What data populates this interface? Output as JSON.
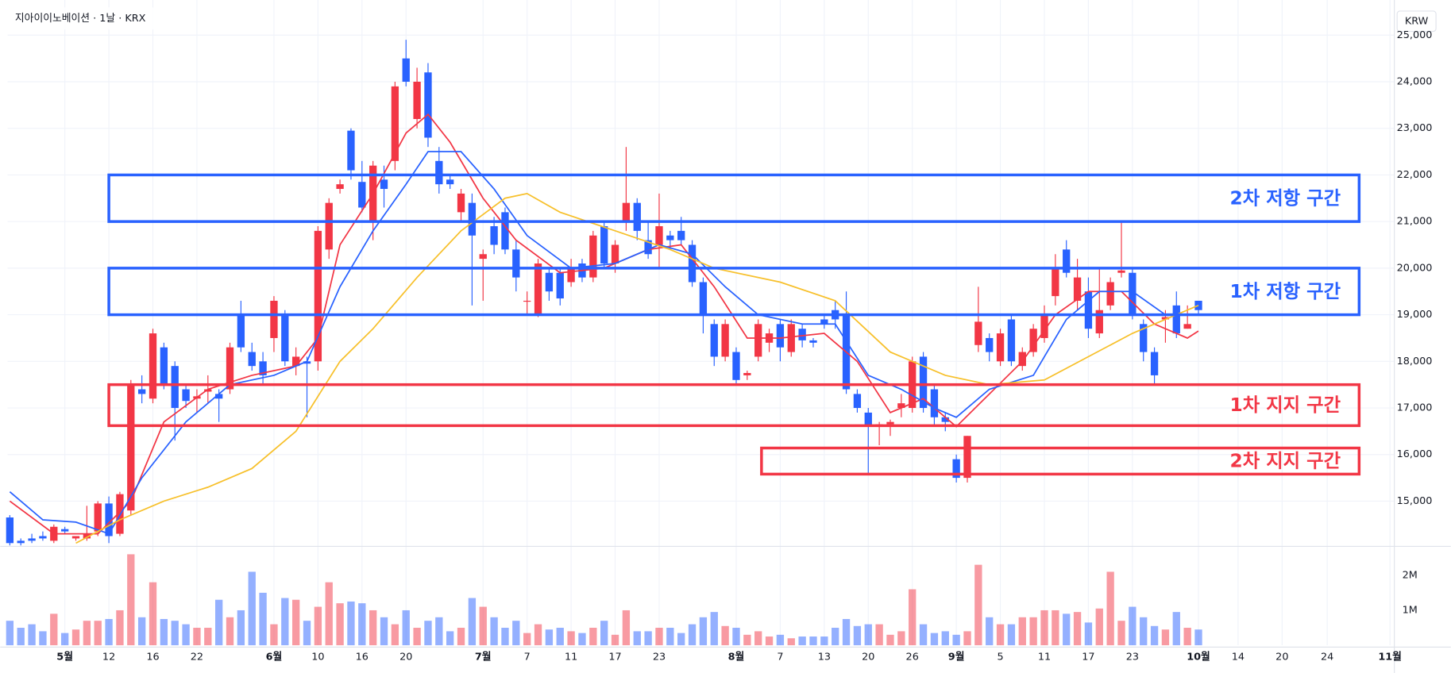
{
  "chart_data": {
    "type": "candlestick",
    "title": "지아이이노베이션 · 1날 · KRX",
    "currency": "KRW",
    "up_color": "#f23645",
    "down_color": "#2962ff",
    "open": [
      14650,
      14150,
      14200,
      14250,
      14150,
      14400,
      14200,
      14200,
      14350,
      14950,
      14300,
      14800,
      17400,
      17200,
      18300,
      17900,
      17400,
      17200,
      17350,
      17300,
      17400,
      19000,
      18200,
      18000,
      18500,
      19000,
      17900,
      18000,
      18000,
      20400,
      21700,
      22950,
      21850,
      21000,
      21900,
      22300,
      24500,
      23200,
      24200,
      22300,
      21900,
      21200,
      21400,
      20200,
      20900,
      21200,
      20400,
      19300,
      19000,
      19900,
      19900,
      19700,
      20100,
      19800,
      20900,
      20100,
      21000,
      21400,
      20600,
      20500,
      20700,
      20800,
      20500,
      19700,
      18800,
      18100,
      18200,
      17700,
      18100,
      18400,
      18800,
      18200,
      18700,
      18450,
      18900,
      19100,
      19000,
      17300,
      16900,
      16600,
      16650,
      17000,
      17000,
      18100,
      17400,
      16800,
      15900,
      15500,
      18350,
      18500,
      18000,
      18900,
      17900,
      18200,
      18500,
      19400,
      20400,
      19300,
      19500,
      18600,
      19200,
      19900,
      19900,
      18800,
      18200,
      18900,
      19200,
      18700,
      19300
    ],
    "high": [
      14700,
      14200,
      14300,
      14350,
      14500,
      14450,
      14250,
      14900,
      15000,
      15100,
      15200,
      17600,
      17700,
      18700,
      18400,
      18000,
      17500,
      17400,
      17700,
      17400,
      18400,
      19300,
      18400,
      18200,
      19400,
      19100,
      18300,
      18100,
      20900,
      21500,
      21900,
      23000,
      22300,
      22300,
      22200,
      24000,
      24900,
      24300,
      24400,
      22600,
      22000,
      21700,
      21600,
      20400,
      21100,
      21300,
      20600,
      19500,
      20200,
      20000,
      20000,
      20200,
      20200,
      20800,
      21000,
      20600,
      22600,
      21500,
      21000,
      21600,
      20800,
      21100,
      20600,
      19800,
      18900,
      18900,
      18300,
      17800,
      18900,
      18700,
      18900,
      18900,
      18800,
      18500,
      19000,
      19300,
      19500,
      17400,
      17000,
      16700,
      16750,
      17300,
      18100,
      18200,
      17500,
      16900,
      16000,
      16400,
      19600,
      18600,
      18700,
      19000,
      18300,
      18800,
      19200,
      20300,
      20600,
      20200,
      19800,
      20000,
      19800,
      21000,
      20000,
      18900,
      18300,
      19100,
      19500,
      19200,
      19300
    ],
    "low": [
      14050,
      14050,
      14100,
      14150,
      14100,
      14300,
      14150,
      14150,
      14250,
      14100,
      14250,
      14700,
      17100,
      17100,
      17400,
      16300,
      17000,
      16900,
      17100,
      16700,
      17300,
      18200,
      17800,
      17500,
      18200,
      17900,
      17700,
      16800,
      17800,
      20200,
      21600,
      21900,
      21200,
      20600,
      21300,
      22100,
      23900,
      23000,
      22600,
      21600,
      21700,
      21000,
      19200,
      19300,
      20300,
      20300,
      19500,
      19000,
      18950,
      19300,
      19200,
      19600,
      19700,
      19700,
      20000,
      19900,
      20800,
      20600,
      20200,
      20000,
      20400,
      20500,
      19600,
      18600,
      17900,
      18000,
      17500,
      17600,
      18000,
      18200,
      18000,
      18100,
      18300,
      18300,
      18700,
      18700,
      17300,
      16900,
      15600,
      16200,
      16400,
      16800,
      16900,
      16900,
      16600,
      16500,
      15400,
      15400,
      18200,
      18000,
      17900,
      17900,
      17800,
      18100,
      18400,
      19200,
      19800,
      19100,
      18500,
      18500,
      19100,
      19800,
      18900,
      18000,
      17500,
      18400,
      18500,
      18700,
      19000
    ],
    "close": [
      14100,
      14100,
      14150,
      14200,
      14450,
      14350,
      14250,
      14300,
      14950,
      14250,
      15150,
      17500,
      17300,
      18600,
      17500,
      17000,
      17150,
      17250,
      17400,
      17200,
      18300,
      18300,
      17900,
      17700,
      19300,
      18000,
      18100,
      17950,
      20800,
      21400,
      21800,
      22100,
      21300,
      22200,
      21700,
      23900,
      24000,
      24000,
      22800,
      21800,
      21800,
      21600,
      20700,
      20300,
      20500,
      20400,
      19800,
      19300,
      20100,
      19500,
      19350,
      20000,
      19800,
      20700,
      20100,
      20500,
      21400,
      20800,
      20300,
      20900,
      20600,
      20600,
      19700,
      19000,
      18100,
      18800,
      17600,
      17750,
      18800,
      18600,
      18300,
      18800,
      18450,
      18400,
      18800,
      18900,
      17400,
      17000,
      16600,
      16650,
      16700,
      17100,
      18000,
      17000,
      16800,
      16700,
      15500,
      16400,
      18850,
      18200,
      18600,
      18000,
      18200,
      18700,
      19000,
      20000,
      19900,
      19800,
      18700,
      19100,
      19700,
      19950,
      19000,
      18200,
      17700,
      18950,
      18600,
      18800,
      19100
    ],
    "volume": [
      700000,
      500000,
      600000,
      400000,
      900000,
      350000,
      450000,
      700000,
      700000,
      750000,
      1000000,
      2600000,
      800000,
      1800000,
      750000,
      700000,
      600000,
      500000,
      500000,
      1300000,
      800000,
      1000000,
      2100000,
      1500000,
      600000,
      1350000,
      1300000,
      700000,
      1100000,
      1800000,
      1200000,
      1250000,
      1200000,
      1000000,
      800000,
      600000,
      1000000,
      500000,
      700000,
      800000,
      400000,
      500000,
      1350000,
      1100000,
      800000,
      500000,
      700000,
      350000,
      600000,
      450000,
      500000,
      400000,
      350000,
      500000,
      700000,
      300000,
      1000000,
      400000,
      400000,
      500000,
      500000,
      350000,
      600000,
      800000,
      950000,
      550000,
      500000,
      300000,
      400000,
      250000,
      300000,
      200000,
      250000,
      250000,
      250000,
      500000,
      750000,
      550000,
      600000,
      600000,
      300000,
      400000,
      1600000,
      600000,
      350000,
      400000,
      300000,
      400000,
      2300000,
      800000,
      600000,
      600000,
      800000,
      800000,
      1000000,
      1000000,
      900000,
      950000,
      650000,
      1050000,
      2100000,
      700000,
      1100000,
      800000,
      550000,
      450000,
      950000,
      500000,
      450000
    ],
    "xlim": [
      -0.2,
      125.8
    ],
    "xticks": [
      {
        "value": 5,
        "label": "5월"
      },
      {
        "value": 9,
        "label": "12"
      },
      {
        "value": 13,
        "label": "16"
      },
      {
        "value": 17,
        "label": "22"
      },
      {
        "value": 24,
        "label": "6월"
      },
      {
        "value": 28,
        "label": "10"
      },
      {
        "value": 32,
        "label": "16"
      },
      {
        "value": 36,
        "label": "20"
      },
      {
        "value": 43,
        "label": "7월"
      },
      {
        "value": 47,
        "label": "7"
      },
      {
        "value": 51,
        "label": "11"
      },
      {
        "value": 55,
        "label": "17"
      },
      {
        "value": 59,
        "label": "23"
      },
      {
        "value": 66,
        "label": "8월"
      },
      {
        "value": 70,
        "label": "7"
      },
      {
        "value": 74,
        "label": "13"
      },
      {
        "value": 78,
        "label": "20"
      },
      {
        "value": 82,
        "label": "26"
      },
      {
        "value": 86,
        "label": "9월"
      },
      {
        "value": 90,
        "label": "5"
      },
      {
        "value": 94,
        "label": "11"
      },
      {
        "value": 98,
        "label": "17"
      },
      {
        "value": 102,
        "label": "23"
      },
      {
        "value": 108,
        "label": "10월"
      },
      {
        "value": 111.6,
        "label": "14"
      },
      {
        "value": 115.6,
        "label": "20"
      },
      {
        "value": 119.7,
        "label": "24"
      },
      {
        "value": 125.4,
        "label": "11월"
      }
    ],
    "ylim": [
      14050,
      25000
    ],
    "yticks": [
      {
        "value": 15000,
        "label": "15,000"
      },
      {
        "value": 16000,
        "label": "16,000"
      },
      {
        "value": 17000,
        "label": "17,000"
      },
      {
        "value": 18000,
        "label": "18,000"
      },
      {
        "value": 19000,
        "label": "19,000"
      },
      {
        "value": 20000,
        "label": "20,000"
      },
      {
        "value": 21000,
        "label": "21,000"
      },
      {
        "value": 22000,
        "label": "22,000"
      },
      {
        "value": 23000,
        "label": "23,000"
      },
      {
        "value": 24000,
        "label": "24,000"
      },
      {
        "value": 25000,
        "label": "25,000"
      }
    ],
    "vlim": [
      0,
      2800000
    ],
    "vticks": [
      {
        "value": 1000000,
        "label": "1M"
      },
      {
        "value": 2000000,
        "label": "2M"
      }
    ],
    "grid": true,
    "lines": [
      {
        "color": "#f23645",
        "x": [
          0,
          4,
          8,
          11,
          14,
          18,
          22,
          26,
          28,
          30,
          33,
          36,
          38,
          40,
          43,
          46,
          50,
          54,
          58,
          61,
          64,
          67,
          70,
          74,
          77,
          80,
          83,
          86,
          89,
          92,
          95,
          98,
          101,
          104,
          107,
          108
        ],
        "values": [
          15000,
          14300,
          14300,
          15000,
          16700,
          17400,
          17700,
          17900,
          18500,
          20500,
          21600,
          22900,
          23300,
          22700,
          21500,
          20600,
          19900,
          20000,
          20400,
          20500,
          19600,
          18500,
          18500,
          18600,
          18000,
          16900,
          17200,
          16600,
          17300,
          18000,
          19000,
          19500,
          19500,
          18800,
          18500,
          18650
        ]
      },
      {
        "color": "#2962ff",
        "x": [
          0,
          3,
          6,
          9,
          12,
          16,
          20,
          24,
          27,
          30,
          33,
          36,
          38,
          41,
          44,
          47,
          51,
          55,
          59,
          62,
          65,
          68,
          72,
          75,
          78,
          81,
          84,
          86,
          89,
          93,
          96,
          99,
          102,
          105,
          108
        ],
        "values": [
          15200,
          14600,
          14550,
          14300,
          15500,
          16700,
          17500,
          17700,
          18000,
          19600,
          20800,
          21800,
          22500,
          22500,
          21700,
          20700,
          20000,
          20100,
          20500,
          20300,
          19600,
          19000,
          18800,
          18800,
          17700,
          17400,
          17000,
          16800,
          17400,
          17700,
          18900,
          19500,
          19500,
          19000,
          19000
        ]
      },
      {
        "color": "#f7c02b",
        "x": [
          6,
          10,
          14,
          18,
          22,
          26,
          30,
          33,
          37,
          41,
          45,
          47,
          50,
          55,
          60,
          64,
          70,
          75,
          80,
          85,
          89,
          94,
          98,
          102,
          105,
          108
        ],
        "values": [
          14100,
          14600,
          15000,
          15300,
          15700,
          16500,
          18000,
          18700,
          19800,
          20800,
          21500,
          21600,
          21200,
          20800,
          20400,
          20000,
          19700,
          19300,
          18200,
          17700,
          17500,
          17600,
          18100,
          18600,
          18900,
          19200
        ]
      }
    ],
    "zones": [
      {
        "label": "2차 저항 구간",
        "range": [
          21000,
          22000
        ],
        "x": [
          9,
          122.6
        ],
        "color": "#2962ff"
      },
      {
        "label": "1차 저항 구간",
        "range": [
          19000,
          20000
        ],
        "x": [
          9,
          122.6
        ],
        "color": "#2962ff"
      },
      {
        "label": "1차 지지 구간",
        "range": [
          16620,
          17500
        ],
        "x": [
          9,
          122.6
        ],
        "color": "#f23645"
      },
      {
        "label": "2차 지지 구간",
        "range": [
          15580,
          16140
        ],
        "x": [
          68.3,
          122.6
        ],
        "color": "#f23645"
      }
    ]
  }
}
